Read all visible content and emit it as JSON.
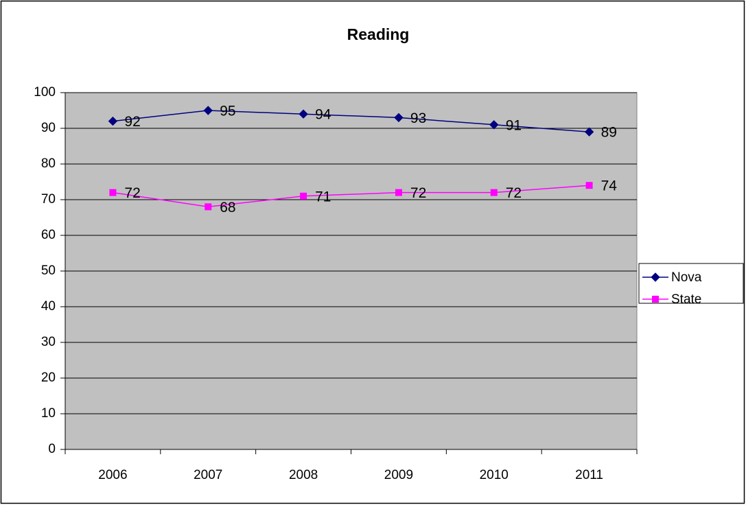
{
  "chart_data": {
    "type": "line",
    "title": "Reading",
    "categories": [
      "2006",
      "2007",
      "2008",
      "2009",
      "2010",
      "2011"
    ],
    "series": [
      {
        "name": "Nova",
        "color": "#000080",
        "marker": "diamond",
        "values": [
          92,
          95,
          94,
          93,
          91,
          89
        ]
      },
      {
        "name": "State",
        "color": "#FF00FF",
        "marker": "square",
        "values": [
          72,
          68,
          71,
          72,
          72,
          74
        ]
      }
    ],
    "ylim": [
      0,
      100
    ],
    "yticks": [
      0,
      10,
      20,
      30,
      40,
      50,
      60,
      70,
      80,
      90,
      100
    ],
    "grid": true,
    "legend": "right",
    "plot_background": "#C0C0C0"
  }
}
